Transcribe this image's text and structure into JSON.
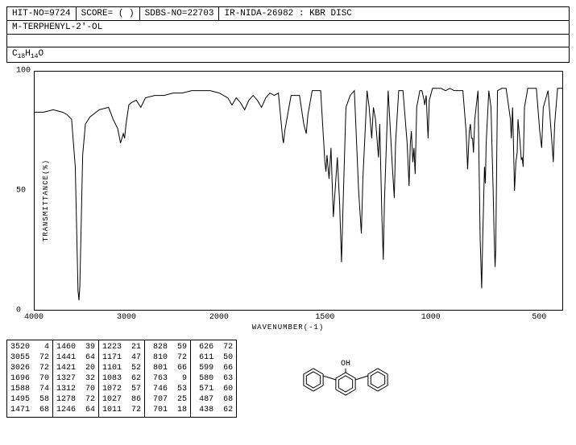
{
  "header": {
    "hit_no": "HIT-NO=9724",
    "score": "SCORE=  (  )",
    "sdbs_no": "SDBS-NO=22703",
    "ir": "IR-NIDA-26982 : KBR DISC"
  },
  "compound_name": "M-TERPHENYL-2'-OL",
  "formula_html": "C<sub>18</sub>H<sub>14</sub>O",
  "chart": {
    "type": "line",
    "xlabel": "WAVENUMBER(-1)",
    "ylabel": "TRANSMITTANCE(%)",
    "xlim": [
      4000,
      400
    ],
    "ylim": [
      0,
      100
    ],
    "yticks": [
      0,
      50,
      100
    ],
    "xticks": [
      4000,
      3000,
      2000,
      1500,
      1000,
      500
    ],
    "line_color": "#000000",
    "background_color": "#ffffff",
    "data": [
      [
        4000,
        83
      ],
      [
        3900,
        83
      ],
      [
        3800,
        84
      ],
      [
        3700,
        83
      ],
      [
        3650,
        82
      ],
      [
        3600,
        80
      ],
      [
        3560,
        60
      ],
      [
        3530,
        8
      ],
      [
        3520,
        4
      ],
      [
        3510,
        10
      ],
      [
        3480,
        65
      ],
      [
        3450,
        78
      ],
      [
        3400,
        81
      ],
      [
        3300,
        84
      ],
      [
        3200,
        85
      ],
      [
        3150,
        80
      ],
      [
        3100,
        76
      ],
      [
        3070,
        70
      ],
      [
        3055,
        72
      ],
      [
        3040,
        74
      ],
      [
        3026,
        72
      ],
      [
        3010,
        78
      ],
      [
        2980,
        86
      ],
      [
        2950,
        87
      ],
      [
        2900,
        88
      ],
      [
        2850,
        85
      ],
      [
        2800,
        89
      ],
      [
        2700,
        90
      ],
      [
        2600,
        90
      ],
      [
        2500,
        91
      ],
      [
        2400,
        91
      ],
      [
        2300,
        92
      ],
      [
        2200,
        92
      ],
      [
        2100,
        92
      ],
      [
        2000,
        91
      ],
      [
        1960,
        89
      ],
      [
        1940,
        86
      ],
      [
        1920,
        89
      ],
      [
        1900,
        87
      ],
      [
        1880,
        84
      ],
      [
        1860,
        88
      ],
      [
        1840,
        90
      ],
      [
        1820,
        88
      ],
      [
        1800,
        85
      ],
      [
        1780,
        89
      ],
      [
        1760,
        91
      ],
      [
        1740,
        90
      ],
      [
        1720,
        91
      ],
      [
        1700,
        72
      ],
      [
        1696,
        70
      ],
      [
        1690,
        75
      ],
      [
        1660,
        90
      ],
      [
        1640,
        90
      ],
      [
        1620,
        90
      ],
      [
        1600,
        78
      ],
      [
        1588,
        74
      ],
      [
        1580,
        82
      ],
      [
        1560,
        92
      ],
      [
        1540,
        92
      ],
      [
        1520,
        92
      ],
      [
        1500,
        62
      ],
      [
        1495,
        58
      ],
      [
        1490,
        65
      ],
      [
        1480,
        55
      ],
      [
        1471,
        68
      ],
      [
        1460,
        39
      ],
      [
        1450,
        52
      ],
      [
        1441,
        64
      ],
      [
        1430,
        45
      ],
      [
        1421,
        20
      ],
      [
        1415,
        40
      ],
      [
        1400,
        85
      ],
      [
        1380,
        90
      ],
      [
        1360,
        92
      ],
      [
        1340,
        50
      ],
      [
        1327,
        32
      ],
      [
        1320,
        55
      ],
      [
        1312,
        70
      ],
      [
        1300,
        92
      ],
      [
        1290,
        85
      ],
      [
        1278,
        72
      ],
      [
        1270,
        85
      ],
      [
        1260,
        80
      ],
      [
        1246,
        64
      ],
      [
        1240,
        78
      ],
      [
        1230,
        40
      ],
      [
        1223,
        21
      ],
      [
        1218,
        45
      ],
      [
        1200,
        92
      ],
      [
        1180,
        60
      ],
      [
        1171,
        47
      ],
      [
        1165,
        70
      ],
      [
        1150,
        92
      ],
      [
        1130,
        92
      ],
      [
        1110,
        70
      ],
      [
        1101,
        52
      ],
      [
        1095,
        70
      ],
      [
        1090,
        75
      ],
      [
        1083,
        62
      ],
      [
        1078,
        68
      ],
      [
        1072,
        57
      ],
      [
        1065,
        85
      ],
      [
        1050,
        92
      ],
      [
        1040,
        92
      ],
      [
        1030,
        88
      ],
      [
        1027,
        86
      ],
      [
        1020,
        90
      ],
      [
        1015,
        80
      ],
      [
        1011,
        72
      ],
      [
        1005,
        88
      ],
      [
        990,
        93
      ],
      [
        970,
        93
      ],
      [
        950,
        93
      ],
      [
        930,
        92
      ],
      [
        910,
        93
      ],
      [
        890,
        92
      ],
      [
        870,
        92
      ],
      [
        850,
        92
      ],
      [
        835,
        75
      ],
      [
        828,
        59
      ],
      [
        820,
        75
      ],
      [
        815,
        78
      ],
      [
        810,
        72
      ],
      [
        805,
        72
      ],
      [
        801,
        66
      ],
      [
        795,
        80
      ],
      [
        780,
        92
      ],
      [
        770,
        30
      ],
      [
        763,
        9
      ],
      [
        758,
        30
      ],
      [
        750,
        60
      ],
      [
        746,
        53
      ],
      [
        742,
        70
      ],
      [
        730,
        92
      ],
      [
        720,
        85
      ],
      [
        710,
        50
      ],
      [
        705,
        30
      ],
      [
        701,
        18
      ],
      [
        698,
        25
      ],
      [
        690,
        92
      ],
      [
        670,
        93
      ],
      [
        650,
        93
      ],
      [
        630,
        80
      ],
      [
        626,
        72
      ],
      [
        620,
        85
      ],
      [
        615,
        65
      ],
      [
        611,
        50
      ],
      [
        605,
        62
      ],
      [
        599,
        66
      ],
      [
        595,
        80
      ],
      [
        585,
        70
      ],
      [
        580,
        63
      ],
      [
        576,
        64
      ],
      [
        571,
        60
      ],
      [
        565,
        85
      ],
      [
        550,
        93
      ],
      [
        530,
        93
      ],
      [
        510,
        93
      ],
      [
        495,
        75
      ],
      [
        487,
        68
      ],
      [
        480,
        85
      ],
      [
        460,
        92
      ],
      [
        445,
        72
      ],
      [
        438,
        62
      ],
      [
        432,
        78
      ],
      [
        420,
        93
      ],
      [
        400,
        93
      ]
    ]
  },
  "peak_table": {
    "columns": [
      [
        [
          3520,
          4
        ],
        [
          3055,
          72
        ],
        [
          3026,
          72
        ],
        [
          1696,
          70
        ],
        [
          1588,
          74
        ],
        [
          1495,
          58
        ],
        [
          1471,
          68
        ]
      ],
      [
        [
          1460,
          39
        ],
        [
          1441,
          64
        ],
        [
          1421,
          20
        ],
        [
          1327,
          32
        ],
        [
          1312,
          70
        ],
        [
          1278,
          72
        ],
        [
          1246,
          64
        ]
      ],
      [
        [
          1223,
          21
        ],
        [
          1171,
          47
        ],
        [
          1101,
          52
        ],
        [
          1083,
          62
        ],
        [
          1072,
          57
        ],
        [
          1027,
          86
        ],
        [
          1011,
          72
        ]
      ],
      [
        [
          828,
          59
        ],
        [
          810,
          72
        ],
        [
          801,
          66
        ],
        [
          763,
          9
        ],
        [
          746,
          53
        ],
        [
          707,
          25
        ],
        [
          701,
          18
        ]
      ],
      [
        [
          626,
          72
        ],
        [
          611,
          50
        ],
        [
          599,
          66
        ],
        [
          580,
          63
        ],
        [
          571,
          60
        ],
        [
          487,
          68
        ],
        [
          438,
          62
        ]
      ]
    ]
  },
  "molecule": {
    "label": "OH",
    "stroke": "#000000"
  }
}
